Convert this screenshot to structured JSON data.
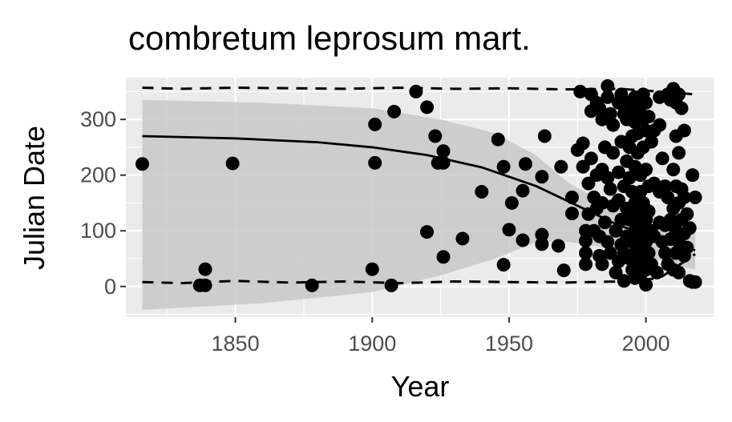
{
  "chart_data": {
    "type": "scatter",
    "title": "combretum leprosum mart.",
    "xlabel": "Year",
    "ylabel": "Julian Date",
    "xlim": [
      1810,
      2025
    ],
    "ylim": [
      -55,
      375
    ],
    "xticks": [
      1850,
      1900,
      1950,
      2000
    ],
    "yticks": [
      0,
      100,
      200,
      300
    ],
    "grid": true,
    "legend": "none",
    "colors": {
      "panel": "#ebebeb",
      "grid": "#ffffff",
      "ribbon": "#c8c8c8",
      "point": "#000000",
      "line": "#000000"
    },
    "points": [
      [
        1816,
        220
      ],
      [
        1837,
        2
      ],
      [
        1839,
        2
      ],
      [
        1839,
        31
      ],
      [
        1849,
        221
      ],
      [
        1878,
        2
      ],
      [
        1900,
        31
      ],
      [
        1901,
        291
      ],
      [
        1901,
        222
      ],
      [
        1907,
        2
      ],
      [
        1908,
        314
      ],
      [
        1916,
        350
      ],
      [
        1920,
        322
      ],
      [
        1920,
        98
      ],
      [
        1923,
        270
      ],
      [
        1924,
        222
      ],
      [
        1926,
        243
      ],
      [
        1926,
        222
      ],
      [
        1926,
        53
      ],
      [
        1933,
        86
      ],
      [
        1940,
        170
      ],
      [
        1946,
        264
      ],
      [
        1948,
        215
      ],
      [
        1948,
        39
      ],
      [
        1950,
        102
      ],
      [
        1951,
        150
      ],
      [
        1955,
        172
      ],
      [
        1955,
        83
      ],
      [
        1956,
        220
      ],
      [
        1962,
        197
      ],
      [
        1962,
        93
      ],
      [
        1962,
        76
      ],
      [
        1963,
        270
      ],
      [
        1968,
        73
      ],
      [
        1969,
        215
      ],
      [
        1970,
        29
      ],
      [
        1973,
        160
      ],
      [
        1973,
        131
      ],
      [
        1975,
        245
      ],
      [
        1976,
        350
      ],
      [
        1977,
        257
      ],
      [
        1977,
        215
      ],
      [
        1978,
        100
      ],
      [
        1978,
        82
      ],
      [
        1978,
        60
      ],
      [
        1978,
        40
      ],
      [
        1979,
        185
      ],
      [
        1979,
        130
      ],
      [
        1980,
        345
      ],
      [
        1980,
        315
      ],
      [
        1980,
        230
      ],
      [
        1981,
        160
      ],
      [
        1981,
        100
      ],
      [
        1982,
        330
      ],
      [
        1982,
        200
      ],
      [
        1982,
        140
      ],
      [
        1983,
        320
      ],
      [
        1983,
        90
      ],
      [
        1983,
        55
      ],
      [
        1984,
        300
      ],
      [
        1984,
        210
      ],
      [
        1984,
        150
      ],
      [
        1984,
        40
      ],
      [
        1985,
        250
      ],
      [
        1985,
        115
      ],
      [
        1986,
        360
      ],
      [
        1986,
        340
      ],
      [
        1986,
        195
      ],
      [
        1986,
        80
      ],
      [
        1987,
        310
      ],
      [
        1987,
        175
      ],
      [
        1987,
        60
      ],
      [
        1988,
        290
      ],
      [
        1988,
        240
      ],
      [
        1988,
        145
      ],
      [
        1989,
        100
      ],
      [
        1989,
        25
      ],
      [
        1990,
        330
      ],
      [
        1990,
        205
      ],
      [
        1990,
        155
      ],
      [
        1990,
        45
      ],
      [
        1991,
        345
      ],
      [
        1991,
        260
      ],
      [
        1991,
        120
      ],
      [
        1991,
        75
      ],
      [
        1992,
        310
      ],
      [
        1992,
        180
      ],
      [
        1992,
        60
      ],
      [
        1992,
        10
      ],
      [
        1993,
        300
      ],
      [
        1993,
        225
      ],
      [
        1993,
        140
      ],
      [
        1993,
        90
      ],
      [
        1994,
        330
      ],
      [
        1994,
        250
      ],
      [
        1994,
        195
      ],
      [
        1994,
        120
      ],
      [
        1994,
        50
      ],
      [
        1995,
        315
      ],
      [
        1995,
        270
      ],
      [
        1995,
        170
      ],
      [
        1995,
        80
      ],
      [
        1995,
        30
      ],
      [
        1996,
        340
      ],
      [
        1996,
        295
      ],
      [
        1996,
        215
      ],
      [
        1996,
        150
      ],
      [
        1996,
        100
      ],
      [
        1996,
        60
      ],
      [
        1996,
        15
      ],
      [
        1997,
        320
      ],
      [
        1997,
        275
      ],
      [
        1997,
        240
      ],
      [
        1997,
        130
      ],
      [
        1997,
        85
      ],
      [
        1997,
        40
      ],
      [
        1998,
        310
      ],
      [
        1998,
        200
      ],
      [
        1998,
        170
      ],
      [
        1998,
        110
      ],
      [
        1998,
        70
      ],
      [
        1998,
        20
      ],
      [
        1999,
        345
      ],
      [
        1999,
        300
      ],
      [
        1999,
        250
      ],
      [
        1999,
        150
      ],
      [
        1999,
        95
      ],
      [
        1999,
        50
      ],
      [
        2000,
        330
      ],
      [
        2000,
        280
      ],
      [
        2000,
        210
      ],
      [
        2000,
        120
      ],
      [
        2000,
        80
      ],
      [
        2000,
        30
      ],
      [
        2000,
        3
      ],
      [
        2001,
        305
      ],
      [
        2001,
        180
      ],
      [
        2001,
        135
      ],
      [
        2001,
        60
      ],
      [
        2002,
        260
      ],
      [
        2002,
        100
      ],
      [
        2002,
        40
      ],
      [
        2003,
        280
      ],
      [
        2003,
        185
      ],
      [
        2003,
        90
      ],
      [
        2004,
        25
      ],
      [
        2005,
        340
      ],
      [
        2005,
        290
      ],
      [
        2005,
        170
      ],
      [
        2005,
        115
      ],
      [
        2006,
        230
      ],
      [
        2006,
        80
      ],
      [
        2007,
        180
      ],
      [
        2007,
        110
      ],
      [
        2007,
        60
      ],
      [
        2008,
        345
      ],
      [
        2008,
        160
      ],
      [
        2008,
        40
      ],
      [
        2009,
        335
      ],
      [
        2009,
        120
      ],
      [
        2009,
        85
      ],
      [
        2010,
        355
      ],
      [
        2010,
        210
      ],
      [
        2010,
        140
      ],
      [
        2010,
        30
      ],
      [
        2011,
        330
      ],
      [
        2011,
        270
      ],
      [
        2011,
        180
      ],
      [
        2011,
        100
      ],
      [
        2011,
        60
      ],
      [
        2012,
        345
      ],
      [
        2012,
        240
      ],
      [
        2012,
        150
      ],
      [
        2012,
        80
      ],
      [
        2012,
        25
      ],
      [
        2013,
        320
      ],
      [
        2013,
        175
      ],
      [
        2013,
        120
      ],
      [
        2014,
        280
      ],
      [
        2014,
        160
      ],
      [
        2014,
        95
      ],
      [
        2014,
        55
      ],
      [
        2015,
        130
      ],
      [
        2015,
        70
      ],
      [
        2016,
        105
      ],
      [
        2016,
        10
      ],
      [
        2017,
        200
      ],
      [
        2017,
        8
      ],
      [
        2018,
        160
      ],
      [
        2018,
        8
      ]
    ],
    "fit_line": [
      [
        1816,
        270
      ],
      [
        1850,
        266
      ],
      [
        1880,
        259
      ],
      [
        1900,
        250
      ],
      [
        1920,
        236
      ],
      [
        1940,
        214
      ],
      [
        1960,
        180
      ],
      [
        1975,
        145
      ],
      [
        1990,
        110
      ],
      [
        2005,
        85
      ],
      [
        2018,
        65
      ]
    ],
    "ribbon": [
      [
        1816,
        335,
        -42
      ],
      [
        1860,
        330,
        -30
      ],
      [
        1900,
        320,
        -10
      ],
      [
        1925,
        300,
        20
      ],
      [
        1945,
        275,
        50
      ],
      [
        1960,
        235,
        80
      ],
      [
        1972,
        185,
        80
      ],
      [
        1985,
        150,
        70
      ],
      [
        2000,
        130,
        55
      ],
      [
        2010,
        115,
        40
      ],
      [
        2018,
        110,
        30
      ]
    ],
    "upper_dashed": [
      [
        1816,
        357
      ],
      [
        1830,
        355
      ],
      [
        1850,
        357
      ],
      [
        1870,
        356
      ],
      [
        1890,
        355
      ],
      [
        1910,
        357
      ],
      [
        1930,
        355
      ],
      [
        1950,
        356
      ],
      [
        1970,
        354
      ],
      [
        1990,
        355
      ],
      [
        2005,
        350
      ],
      [
        2018,
        345
      ]
    ],
    "lower_dashed": [
      [
        1816,
        8
      ],
      [
        1830,
        6
      ],
      [
        1850,
        10
      ],
      [
        1870,
        7
      ],
      [
        1890,
        9
      ],
      [
        1910,
        6
      ],
      [
        1930,
        9
      ],
      [
        1950,
        8
      ],
      [
        1970,
        7
      ],
      [
        1990,
        9
      ],
      [
        2005,
        15
      ],
      [
        2018,
        58
      ]
    ]
  }
}
